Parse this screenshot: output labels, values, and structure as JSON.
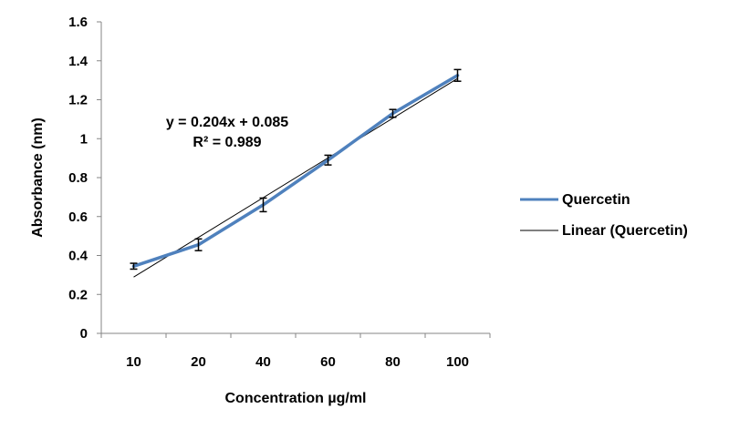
{
  "chart_data": {
    "type": "line",
    "categories": [
      "10",
      "20",
      "40",
      "60",
      "80",
      "100"
    ],
    "series": [
      {
        "name": "Quercetin",
        "values": [
          0.345,
          0.455,
          0.66,
          0.89,
          1.13,
          1.325
        ],
        "error": [
          0.015,
          0.03,
          0.035,
          0.025,
          0.02,
          0.03
        ],
        "color": "#4F81BD"
      }
    ],
    "trendline": {
      "name": "Linear (Quercetin)",
      "slope": 0.204,
      "intercept": 0.085,
      "color": "#000000",
      "equation": "y = 0.204x + 0.085",
      "r_squared": "R² = 0.989"
    },
    "xlabel": "Concentration µg/ml",
    "ylabel": "Absorbance (nm)",
    "ylim": [
      0,
      1.6
    ],
    "yticks": [
      "0",
      "0.2",
      "0.4",
      "0.6",
      "0.8",
      "1",
      "1.2",
      "1.4",
      "1.6"
    ],
    "legend_position": "right",
    "grid": false
  }
}
